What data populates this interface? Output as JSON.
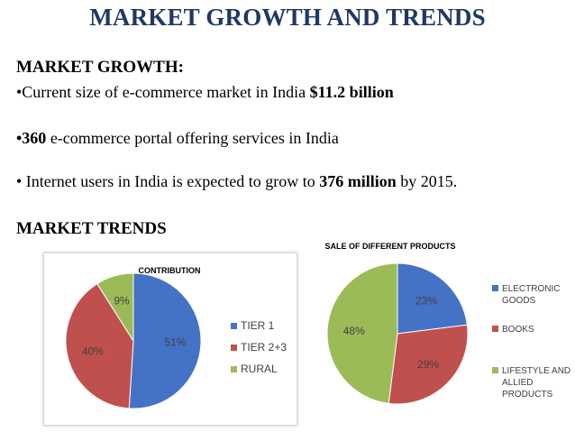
{
  "slide": {
    "title": "MARKET GROWTH AND TRENDS",
    "growth_heading": "MARKET GROWTH:",
    "bullet1_prefix": "•Current size of e-commerce market in India",
    "bullet1_value": "$11.2 billion",
    "bullet2_value": "•360",
    "bullet2_rest": " e-commerce portal offering services in India",
    "bullet3_prefix": "• Internet users in India is expected to grow to ",
    "bullet3_value": "376 million",
    "bullet3_suffix": " by 2015.",
    "trends_heading": "MARKET TRENDS"
  },
  "colors": {
    "title": "#1f3864",
    "blue": "#4472c4",
    "red": "#c0504d",
    "green": "#9bbb59"
  },
  "chart_data": [
    {
      "type": "pie",
      "title": "CONTRIBUTION",
      "legend_position": "right",
      "slices": [
        {
          "label": "TIER 1",
          "value": 51,
          "data_label": "51%",
          "color": "#4472c4"
        },
        {
          "label": "TIER 2+3",
          "value": 40,
          "data_label": "40%",
          "color": "#c0504d"
        },
        {
          "label": "RURAL",
          "value": 9,
          "data_label": "9%",
          "color": "#9bbb59"
        }
      ]
    },
    {
      "type": "pie",
      "title": "SALE OF DIFFERENT PRODUCTS",
      "legend_position": "right",
      "slices": [
        {
          "label": "ELECTRONIC GOODS",
          "legend_lines": [
            "ELECTRONIC",
            "GOODS"
          ],
          "value": 23,
          "data_label": "23%",
          "color": "#4472c4"
        },
        {
          "label": "BOOKS",
          "legend_lines": [
            "BOOKS"
          ],
          "value": 29,
          "data_label": "29%",
          "color": "#c0504d"
        },
        {
          "label": "LIFESTYLE AND ALLIED PRODUCTS",
          "legend_lines": [
            "LIFESTYLE AND",
            "ALLIED",
            "PRODUCTS"
          ],
          "value": 48,
          "data_label": "48%",
          "color": "#9bbb59"
        }
      ]
    }
  ]
}
